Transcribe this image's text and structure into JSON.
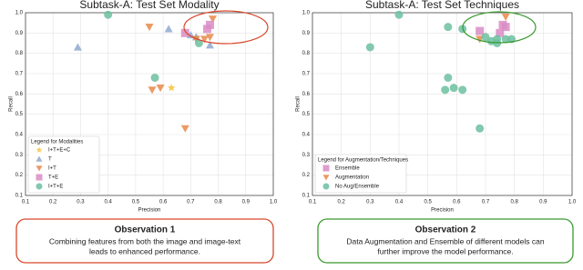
{
  "chart_data": [
    {
      "type": "scatter",
      "title": "Subtask-A:  Test Set Modality",
      "xlabel": "Precision",
      "ylabel": "Recall",
      "xlim": [
        0.1,
        1.0
      ],
      "ylim": [
        0.1,
        1.0
      ],
      "xticks": [
        0.1,
        0.2,
        0.3,
        0.4,
        0.5,
        0.6,
        0.7,
        0.8,
        0.9,
        {
          "value": 1.0,
          "label": "1.0"
        }
      ],
      "yticks": [
        0.1,
        0.2,
        0.3,
        0.4,
        0.5,
        0.6,
        0.7,
        0.8,
        0.9,
        {
          "value": 1.0,
          "label": "1.0"
        }
      ],
      "grid": true,
      "legend_title": "Legend for Modalities",
      "legend_position": "lower left",
      "series": [
        {
          "name": "I+T+E+C",
          "color": "#f5c242",
          "marker": "star",
          "x": [
            0.63
          ],
          "values": [
            0.63
          ]
        },
        {
          "name": "T",
          "color": "#8fa8d0",
          "marker": "triangle-up",
          "x": [
            0.29,
            0.62,
            0.7,
            0.72,
            0.77
          ],
          "values": [
            0.83,
            0.92,
            0.89,
            0.88,
            0.84
          ]
        },
        {
          "name": "I+T",
          "color": "#e8894a",
          "marker": "triangle-down",
          "x": [
            0.55,
            0.56,
            0.59,
            0.68,
            0.72,
            0.75,
            0.77,
            0.78
          ],
          "values": [
            0.93,
            0.62,
            0.63,
            0.43,
            0.87,
            0.87,
            0.88,
            0.97
          ]
        },
        {
          "name": "T+E",
          "color": "#d98cc4",
          "marker": "square",
          "x": [
            0.68,
            0.76,
            0.77
          ],
          "values": [
            0.9,
            0.92,
            0.94
          ]
        },
        {
          "name": "I+T+E",
          "color": "#6cbfa0",
          "marker": "circle",
          "x": [
            0.4,
            0.57,
            0.73
          ],
          "values": [
            0.99,
            0.68,
            0.85
          ]
        }
      ],
      "observation": {
        "title": "Observation 1",
        "lines": [
          "Combining features from both the image and image-text",
          "leads to enhanced performance."
        ],
        "color": "#d9472b"
      }
    },
    {
      "type": "scatter",
      "title": "Subtask-A:  Test Set Techniques",
      "xlabel": "Precision",
      "ylabel": "Recall",
      "xlim": [
        0.1,
        1.0
      ],
      "ylim": [
        0.1,
        1.0
      ],
      "xticks": [
        0.1,
        0.2,
        0.3,
        0.4,
        0.5,
        0.6,
        0.7,
        0.8,
        0.9,
        {
          "value": 1.0,
          "label": "1.0"
        }
      ],
      "yticks": [
        0.1,
        0.2,
        0.3,
        0.4,
        0.5,
        0.6,
        0.7,
        0.8,
        0.9,
        {
          "value": 1.0,
          "label": "1.0"
        }
      ],
      "grid": true,
      "legend_title": "Legend for Augmentation/Techniques",
      "legend_position": "lower left",
      "series": [
        {
          "name": "Ensemble",
          "color": "#d98cc4",
          "marker": "square",
          "x": [
            0.68,
            0.75,
            0.76,
            0.77
          ],
          "values": [
            0.91,
            0.9,
            0.94,
            0.93
          ]
        },
        {
          "name": "Augmentation",
          "color": "#e8894a",
          "marker": "triangle-down",
          "x": [
            0.68,
            0.77
          ],
          "values": [
            0.87,
            0.98
          ]
        },
        {
          "name": "No Aug/Ensemble",
          "color": "#6cbfa0",
          "marker": "circle",
          "x": [
            0.3,
            0.4,
            0.56,
            0.57,
            0.59,
            0.62,
            0.57,
            0.68,
            0.62,
            0.72,
            0.74,
            0.77,
            0.79,
            0.7,
            0.74
          ],
          "values": [
            0.83,
            0.99,
            0.62,
            0.68,
            0.63,
            0.62,
            0.93,
            0.43,
            0.92,
            0.86,
            0.85,
            0.87,
            0.87,
            0.88,
            0.87
          ]
        }
      ],
      "observation": {
        "title": "Observation 2",
        "lines": [
          "Data Augmentation and Ensemble of different models can",
          "further improve the model performance."
        ],
        "color": "#3a9a2e"
      }
    }
  ]
}
